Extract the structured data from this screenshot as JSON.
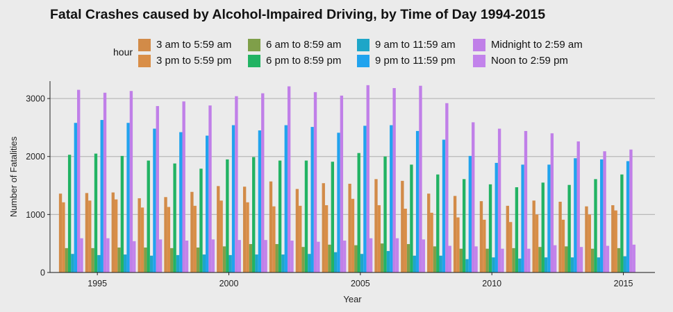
{
  "chart_data": {
    "type": "bar",
    "title": "Fatal Crashes caused by Alcohol-Impaired Driving, by Time of Day 1994-2015",
    "xlabel": "Year",
    "ylabel": "Number of Fatalities",
    "ylim": [
      0,
      3300
    ],
    "yticks": [
      0,
      1000,
      2000,
      3000
    ],
    "xticks": [
      1995,
      2000,
      2005,
      2010,
      2015
    ],
    "grid": true,
    "legend": {
      "title": "hour",
      "position": "top"
    },
    "x": [
      1994,
      1995,
      1996,
      1997,
      1998,
      1999,
      2000,
      2001,
      2002,
      2003,
      2004,
      2005,
      2006,
      2007,
      2008,
      2009,
      2010,
      2011,
      2012,
      2013,
      2014,
      2015
    ],
    "series": [
      {
        "name": "3 am to 5:59 am",
        "color": "#d28b48",
        "values": [
          1360,
          1370,
          1380,
          1280,
          1300,
          1390,
          1490,
          1480,
          1570,
          1440,
          1540,
          1530,
          1610,
          1580,
          1360,
          1320,
          1230,
          1150,
          1240,
          1220,
          1140,
          1160
        ]
      },
      {
        "name": "3 pm to 5:59 pm",
        "color": "#d98e47",
        "values": [
          1210,
          1240,
          1260,
          1120,
          1130,
          1150,
          1240,
          1210,
          1140,
          1150,
          1160,
          1270,
          1160,
          1100,
          1030,
          950,
          910,
          870,
          1000,
          910,
          1000,
          1070
        ]
      },
      {
        "name": "6 am to 8:59 am",
        "color": "#7f9f49",
        "values": [
          420,
          420,
          430,
          430,
          420,
          430,
          450,
          490,
          490,
          440,
          480,
          470,
          500,
          490,
          450,
          410,
          410,
          420,
          440,
          450,
          410,
          420
        ]
      },
      {
        "name": "6 pm to 8:59 pm",
        "color": "#22b363",
        "values": [
          2030,
          2050,
          2010,
          1930,
          1880,
          1790,
          1950,
          1990,
          1930,
          1930,
          1910,
          2060,
          2000,
          1860,
          1690,
          1610,
          1520,
          1470,
          1550,
          1510,
          1610,
          1690
        ]
      },
      {
        "name": "9 am to 11:59 am",
        "color": "#1ea6c8",
        "values": [
          320,
          300,
          310,
          290,
          300,
          310,
          300,
          310,
          310,
          320,
          350,
          320,
          370,
          290,
          290,
          230,
          260,
          240,
          260,
          260,
          260,
          280
        ]
      },
      {
        "name": "9 pm to 11:59 pm",
        "color": "#21a3ee",
        "values": [
          2580,
          2630,
          2580,
          2480,
          2420,
          2360,
          2540,
          2450,
          2540,
          2510,
          2410,
          2530,
          2540,
          2440,
          2290,
          2010,
          1890,
          1860,
          1860,
          1970,
          1950,
          1920
        ]
      },
      {
        "name": "Midnight to 2:59 am",
        "color": "#c07fe8",
        "values": [
          3150,
          3100,
          3130,
          2870,
          2950,
          2880,
          3040,
          3090,
          3210,
          3110,
          3050,
          3230,
          3180,
          3220,
          2920,
          2590,
          2480,
          2440,
          2400,
          2260,
          2090,
          2120
        ]
      },
      {
        "name": "Noon to 2:59 pm",
        "color": "#c283eb",
        "values": [
          590,
          590,
          540,
          570,
          550,
          570,
          560,
          560,
          550,
          530,
          550,
          590,
          590,
          570,
          460,
          450,
          410,
          410,
          470,
          440,
          460,
          480
        ]
      }
    ]
  }
}
